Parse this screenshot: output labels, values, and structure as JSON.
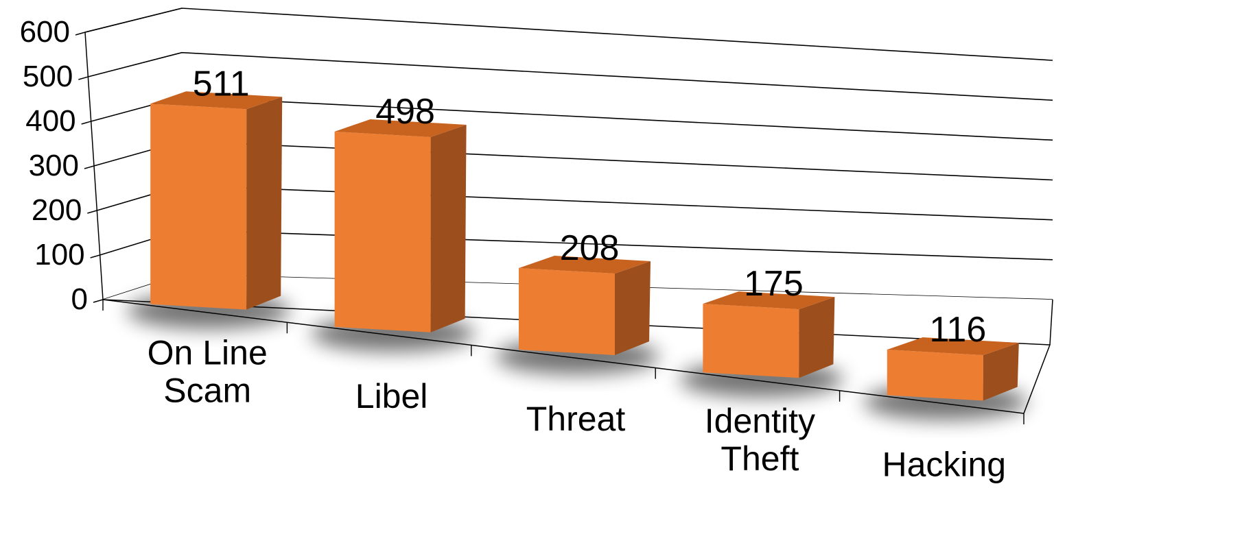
{
  "chart_data": {
    "type": "bar",
    "categories": [
      [
        "On Line",
        "Scam"
      ],
      [
        "Libel"
      ],
      [
        "Threat"
      ],
      [
        "Identity",
        "Theft"
      ],
      [
        "Hacking"
      ]
    ],
    "values": [
      511,
      498,
      208,
      175,
      116
    ],
    "yticks": [
      "0",
      "100",
      "200",
      "300",
      "400",
      "500",
      "600"
    ],
    "ylim": [
      0,
      600
    ],
    "grid": true,
    "colors": {
      "front": "#ED7D31",
      "side": "#9C4F1C",
      "top": "#C8621F"
    }
  }
}
